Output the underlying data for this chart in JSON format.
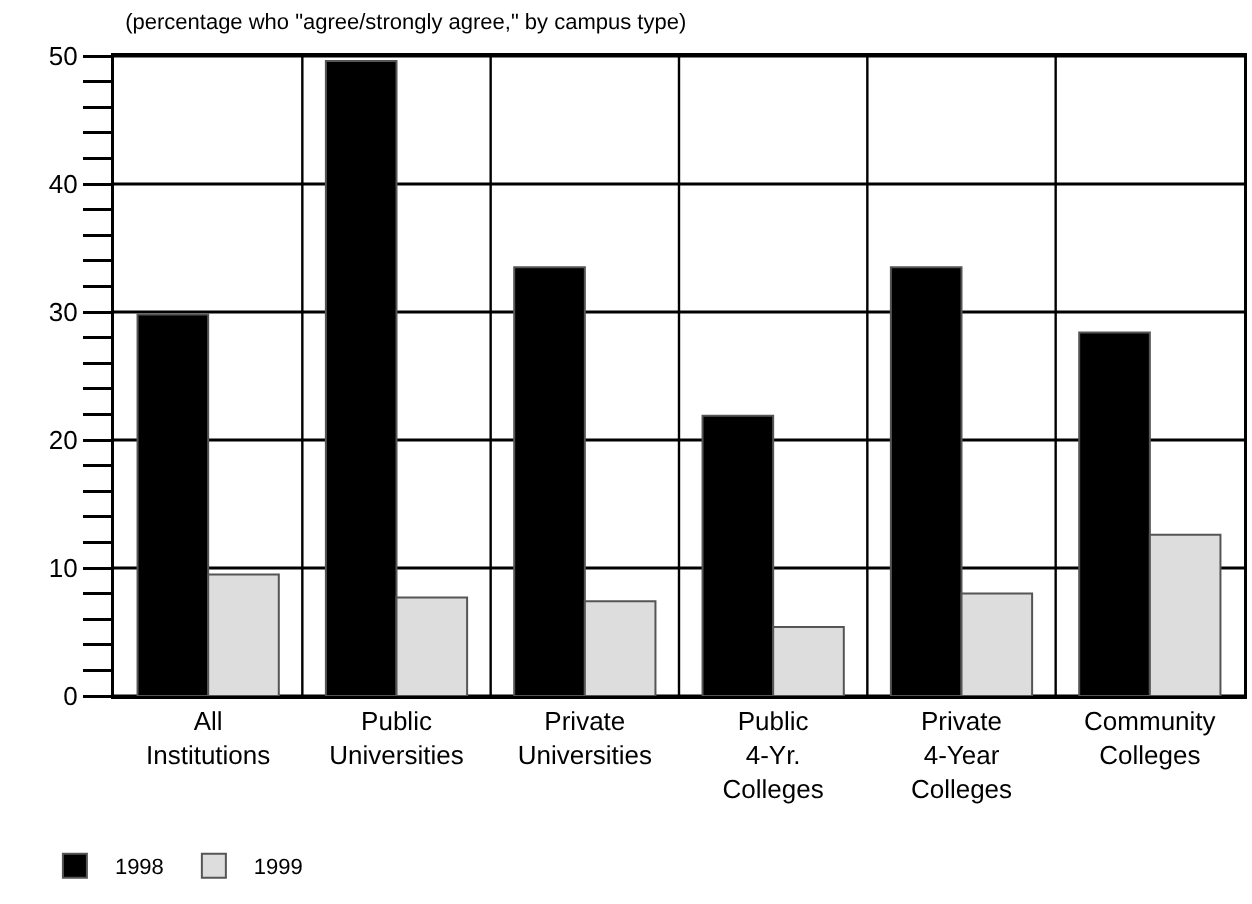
{
  "chart_data": {
    "type": "bar",
    "title": "(percentage who \"agree/strongly agree,\" by campus type)",
    "categories": [
      "All\nInstitutions",
      "Public\nUniversities",
      "Private\nUniversities",
      "Public\n4-Yr.\nColleges",
      "Private\n4-Year\nColleges",
      "Community\nColleges"
    ],
    "series": [
      {
        "name": "1998",
        "color": "#000000",
        "values": [
          29.8,
          49.6,
          33.5,
          21.9,
          33.5,
          28.4
        ]
      },
      {
        "name": "1999",
        "color": "#dddddd",
        "values": [
          9.5,
          7.7,
          7.4,
          5.4,
          8.0,
          12.6
        ]
      }
    ],
    "ylim": [
      0,
      50
    ],
    "yticks": [
      0,
      {
        "value": 2,
        "label": null
      },
      {
        "value": 4,
        "label": null
      },
      {
        "value": 6,
        "label": null
      },
      {
        "value": 8,
        "label": null
      },
      10,
      {
        "value": 12,
        "label": null
      },
      {
        "value": 14,
        "label": null
      },
      {
        "value": 16,
        "label": null
      },
      {
        "value": 18,
        "label": null
      },
      20,
      {
        "value": 22,
        "label": null
      },
      {
        "value": 24,
        "label": null
      },
      {
        "value": 26,
        "label": null
      },
      {
        "value": 28,
        "label": null
      },
      30,
      {
        "value": 32,
        "label": null
      },
      {
        "value": 34,
        "label": null
      },
      {
        "value": 36,
        "label": null
      },
      {
        "value": 38,
        "label": null
      },
      40,
      {
        "value": 42,
        "label": null
      },
      {
        "value": 44,
        "label": null
      },
      {
        "value": 46,
        "label": null
      },
      {
        "value": 48,
        "label": null
      },
      50
    ],
    "grid": true,
    "legend": "bottom left"
  }
}
